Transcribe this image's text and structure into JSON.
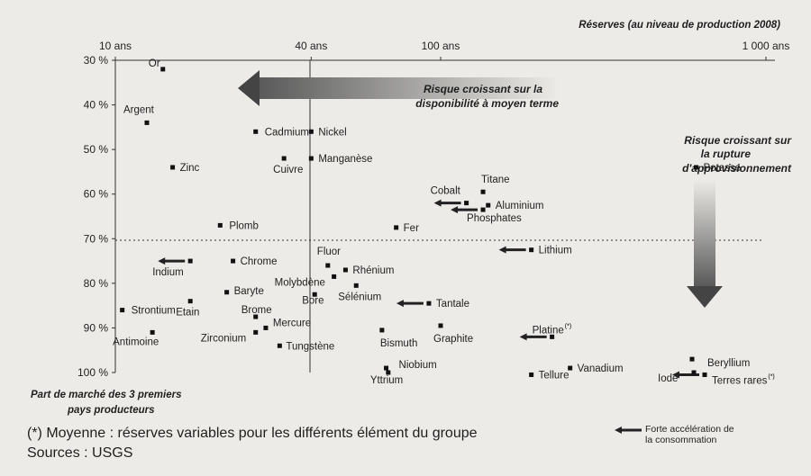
{
  "chart_data": {
    "type": "scatter",
    "title": "Réserves (au niveau de production 2008)",
    "xlabel": "Réserves (au niveau de production 2008)",
    "ylabel": "Part de marché des 3 premiers pays producteurs",
    "x_scale": "log",
    "x_ticks": [
      {
        "value": 10,
        "label": "10 ans"
      },
      {
        "value": 40,
        "label": "40 ans"
      },
      {
        "value": 100,
        "label": "100 ans"
      },
      {
        "value": 1000,
        "label": "1 000 ans"
      }
    ],
    "y_ticks": [
      {
        "value": 30,
        "label": "30 %"
      },
      {
        "value": 40,
        "label": "40 %"
      },
      {
        "value": 50,
        "label": "50 %"
      },
      {
        "value": 60,
        "label": "60 %"
      },
      {
        "value": 70,
        "label": "70 %"
      },
      {
        "value": 80,
        "label": "80 %"
      },
      {
        "value": 90,
        "label": "90 %"
      },
      {
        "value": 100,
        "label": "100 %"
      }
    ],
    "xlim": [
      10,
      1000
    ],
    "ylim": [
      30,
      100
    ],
    "threshold_y": 70,
    "threshold_x": 40,
    "points": [
      {
        "name": "Or",
        "x": 14,
        "y": 32
      },
      {
        "name": "Argent",
        "x": 12.5,
        "y": 44
      },
      {
        "name": "Zinc",
        "x": 15,
        "y": 54
      },
      {
        "name": "Cadmium",
        "x": 27,
        "y": 46
      },
      {
        "name": "Nickel",
        "x": 40,
        "y": 46
      },
      {
        "name": "Cuivre",
        "x": 33,
        "y": 52
      },
      {
        "name": "Manganèse",
        "x": 40,
        "y": 52
      },
      {
        "name": "Plomb",
        "x": 21,
        "y": 67
      },
      {
        "name": "Potasse",
        "x": 610,
        "y": 54
      },
      {
        "name": "Titane",
        "x": 135,
        "y": 59.5
      },
      {
        "name": "Cobalt",
        "x": 120,
        "y": 62
      },
      {
        "name": "Aluminium",
        "x": 140,
        "y": 62.5
      },
      {
        "name": "Phosphates",
        "x": 135,
        "y": 63.5
      },
      {
        "name": "Fer",
        "x": 73,
        "y": 67.5
      },
      {
        "name": "Lithium",
        "x": 190,
        "y": 72.5
      },
      {
        "name": "Indium",
        "x": 17,
        "y": 75
      },
      {
        "name": "Chrome",
        "x": 23,
        "y": 75
      },
      {
        "name": "Fluor",
        "x": 45,
        "y": 76
      },
      {
        "name": "Rhénium",
        "x": 51,
        "y": 77
      },
      {
        "name": "Molybdène",
        "x": 47,
        "y": 78.5
      },
      {
        "name": "Sélénium",
        "x": 55,
        "y": 80.5
      },
      {
        "name": "Baryte",
        "x": 22,
        "y": 82
      },
      {
        "name": "Bore",
        "x": 41,
        "y": 82.5
      },
      {
        "name": "Etain",
        "x": 17,
        "y": 84
      },
      {
        "name": "Tantale",
        "x": 92,
        "y": 84.5
      },
      {
        "name": "Strontium",
        "x": 10.5,
        "y": 86
      },
      {
        "name": "Brome",
        "x": 27,
        "y": 87.5
      },
      {
        "name": "Mercure",
        "x": 29,
        "y": 90
      },
      {
        "name": "Zirconium",
        "x": 27,
        "y": 91
      },
      {
        "name": "Bismuth",
        "x": 66,
        "y": 90.5
      },
      {
        "name": "Graphite",
        "x": 100,
        "y": 89.5
      },
      {
        "name": "Platine",
        "x": 220,
        "y": 92
      },
      {
        "name": "Antimoine",
        "x": 13,
        "y": 91
      },
      {
        "name": "Tungstène",
        "x": 32,
        "y": 94
      },
      {
        "name": "Niobium",
        "x": 68,
        "y": 99
      },
      {
        "name": "Yttrium",
        "x": 69,
        "y": 100
      },
      {
        "name": "Tellure",
        "x": 190,
        "y": 100.5
      },
      {
        "name": "Vanadium",
        "x": 250,
        "y": 99
      },
      {
        "name": "Beryllium",
        "x": 990,
        "y": 97
      },
      {
        "name": "Iode",
        "x": 1040,
        "y": 100
      },
      {
        "name": "Terres rares",
        "x": 1200,
        "y": 100.5
      }
    ],
    "accelerating": [
      "Indium",
      "Cobalt",
      "Phosphates",
      "Lithium",
      "Tantale",
      "Platine",
      "Terres rares"
    ],
    "annotations": [
      {
        "text": "Risque croissant sur la disponibilité à moyen terme"
      },
      {
        "text": "Risque croissant sur la rupture d'approvisionnement"
      }
    ],
    "footnote_markers": [
      "Platine",
      "Terres rares"
    ]
  },
  "annotations": {
    "top_line1": "Risque croissant sur la",
    "top_line2": "disponibilité à moyen terme",
    "right_line1": "Risque croissant sur",
    "right_line2": "la rupture",
    "right_line3": "d'approvisionnement"
  },
  "axis": {
    "x_title": "Réserves (au niveau de production 2008)",
    "y_title_line1": "Part de marché des 3 premiers",
    "y_title_line2": "pays producteurs"
  },
  "footer": {
    "note": "(*) Moyenne : réserves variables pour les différents élément du groupe",
    "sources": "Sources : USGS"
  },
  "legend": {
    "line1": "Forte accélération de",
    "line2": "la consommation"
  },
  "marker": "(*)"
}
